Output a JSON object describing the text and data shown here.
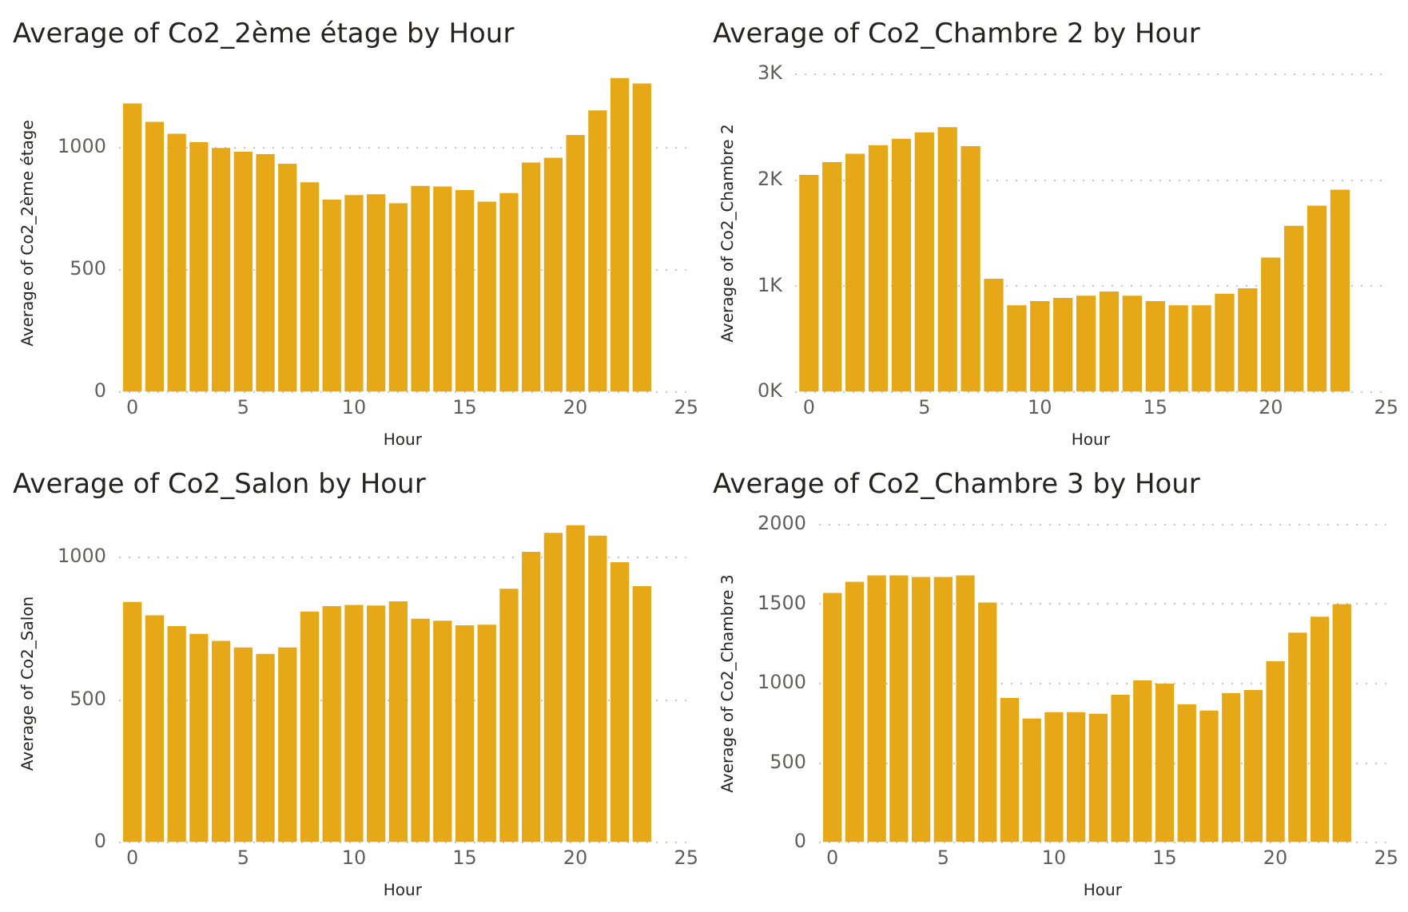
{
  "chart_data": [
    {
      "type": "bar",
      "title": "Average of Co2_2ème étage by Hour",
      "xlabel": "Hour",
      "ylabel": "Average of Co2_2ème étage",
      "x": [
        0,
        1,
        2,
        3,
        4,
        5,
        6,
        7,
        8,
        9,
        10,
        11,
        12,
        13,
        14,
        15,
        16,
        17,
        18,
        19,
        20,
        21,
        22,
        23
      ],
      "values": [
        1180,
        1105,
        1056,
        1022,
        998,
        983,
        973,
        934,
        858,
        787,
        806,
        809,
        772,
        843,
        841,
        826,
        779,
        814,
        939,
        958,
        1051,
        1152,
        1284,
        1262
      ],
      "color": "#e6a817",
      "xlim": [
        -0.6,
        25
      ],
      "xticks": [
        0,
        5,
        10,
        15,
        20,
        25
      ],
      "ylim": [
        0,
        1300
      ],
      "yticks": [
        0,
        500,
        1000
      ],
      "grid": "y"
    },
    {
      "type": "bar",
      "title": "Average of Co2_Chambre 2 by Hour",
      "xlabel": "Hour",
      "ylabel": "Average of Co2_Chambre 2",
      "x": [
        0,
        1,
        2,
        3,
        4,
        5,
        6,
        7,
        8,
        9,
        10,
        11,
        12,
        13,
        14,
        15,
        16,
        17,
        18,
        19,
        20,
        21,
        22,
        23
      ],
      "values": [
        2050,
        2170,
        2250,
        2330,
        2390,
        2450,
        2500,
        2320,
        1070,
        820,
        860,
        890,
        910,
        950,
        910,
        860,
        820,
        820,
        930,
        980,
        1270,
        1570,
        1760,
        1910
      ],
      "color": "#e6a817",
      "xlim": [
        -0.6,
        25
      ],
      "xticks": [
        0,
        5,
        10,
        15,
        20,
        25
      ],
      "ylim": [
        0,
        3000
      ],
      "yticks": [
        {
          "value": 0,
          "label": "0K"
        },
        {
          "value": 1000,
          "label": "1K"
        },
        {
          "value": 2000,
          "label": "2K"
        },
        {
          "value": 3000,
          "label": "3K"
        }
      ],
      "grid": "y"
    },
    {
      "type": "bar",
      "title": "Average of Co2_Salon by Hour",
      "xlabel": "Hour",
      "ylabel": "Average of Co2_Salon",
      "x": [
        0,
        1,
        2,
        3,
        4,
        5,
        6,
        7,
        8,
        9,
        10,
        11,
        12,
        13,
        14,
        15,
        16,
        17,
        18,
        19,
        20,
        21,
        22,
        23
      ],
      "values": [
        844,
        797,
        759,
        732,
        707,
        684,
        662,
        684,
        810,
        829,
        833,
        831,
        846,
        785,
        778,
        762,
        764,
        890,
        1019,
        1086,
        1112,
        1076,
        983,
        899
      ],
      "color": "#e6a817",
      "xlim": [
        -0.6,
        25
      ],
      "xticks": [
        0,
        5,
        10,
        15,
        20,
        25
      ],
      "ylim": [
        0,
        1115
      ],
      "yticks": [
        0,
        500,
        1000
      ],
      "grid": "y"
    },
    {
      "type": "bar",
      "title": "Average of Co2_Chambre 3 by Hour",
      "xlabel": "Hour",
      "ylabel": "Average of Co2_Chambre 3",
      "x": [
        0,
        1,
        2,
        3,
        4,
        5,
        6,
        7,
        8,
        9,
        10,
        11,
        12,
        13,
        14,
        15,
        16,
        17,
        18,
        19,
        20,
        21,
        22,
        23
      ],
      "values": [
        1570,
        1640,
        1680,
        1680,
        1670,
        1670,
        1680,
        1510,
        910,
        780,
        820,
        820,
        810,
        930,
        1020,
        1000,
        870,
        830,
        940,
        960,
        1140,
        1320,
        1420,
        1500
      ],
      "color": "#e6a817",
      "xlim": [
        -0.6,
        25
      ],
      "xticks": [
        0,
        5,
        10,
        15,
        20,
        25
      ],
      "ylim": [
        0,
        2000
      ],
      "yticks": [
        0,
        500,
        1000,
        1500,
        2000
      ],
      "grid": "y"
    }
  ]
}
